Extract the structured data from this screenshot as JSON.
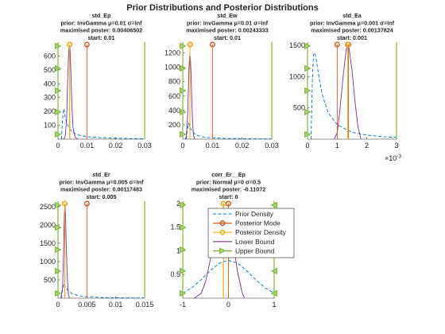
{
  "figure": {
    "suptitle": "Prior Distributions and Posterior Distributions"
  },
  "legend": {
    "entries": [
      "Prior Density",
      "Posterior Mode",
      "Posterior Density",
      "Lower Bound",
      "Upper Bound"
    ],
    "placement": "inside bottom-right of subplot 5 (corr_Er__Ep), overflowing left"
  },
  "colors": {
    "prior": "#0072BD",
    "mode": "#D95319",
    "posterior_density": "#EDB120",
    "lower_bound": "#7E2F8E",
    "upper_bound": "#77AC30",
    "axis": "#262626",
    "background": "#ffffff"
  },
  "chart_data": [
    {
      "type": "line",
      "title": [
        "std_Ep",
        "prior: InvGamma μ=0.01 σ=Inf",
        "maximised poster: 0.00406502",
        "start: 0.01"
      ],
      "xlim": [
        0,
        0.03
      ],
      "ylim": [
        0,
        700
      ],
      "xticks": [
        0,
        0.01,
        0.02,
        0.03
      ],
      "xtick_labels": [
        "0",
        "0.01",
        "0.02",
        "0.03"
      ],
      "yticks": [
        100,
        200,
        300,
        400,
        500,
        600
      ],
      "ytick_labels": [
        "100",
        "200",
        "300",
        "400",
        "500",
        "600"
      ],
      "x_exponent": "",
      "series": [
        {
          "role": "prior",
          "style": "dashed",
          "x": [
            0.0012,
            0.0016,
            0.002,
            0.0025,
            0.003,
            0.004,
            0.005,
            0.007,
            0.01,
            0.015,
            0.02,
            0.025,
            0.03
          ],
          "y": [
            0,
            150,
            220,
            160,
            120,
            75,
            50,
            30,
            18,
            10,
            7,
            4,
            3
          ]
        },
        {
          "role": "posterior_density",
          "style": "solid",
          "x": [
            0.0015,
            0.002,
            0.0025,
            0.003,
            0.0033,
            0.0036,
            0.0038,
            0.004,
            0.0042,
            0.0045,
            0.0048,
            0.0052,
            0.006,
            0.007
          ],
          "y": [
            0,
            0,
            20,
            150,
            400,
            580,
            650,
            670,
            640,
            460,
            250,
            80,
            10,
            0
          ]
        }
      ],
      "lower_bound": 0,
      "upper_bound": 0.03,
      "posterior_mode": 0.00406502,
      "start": 0.01
    },
    {
      "type": "line",
      "title": [
        "std_Ew",
        "prior: InvGamma μ=0.01 σ=Inf",
        "maximised poster: 0.00243333",
        "start: 0.01"
      ],
      "xlim": [
        0,
        0.03
      ],
      "ylim": [
        0,
        1350
      ],
      "xticks": [
        0,
        0.01,
        0.02,
        0.03
      ],
      "xtick_labels": [
        "0",
        "0.01",
        "0.02",
        "0.03"
      ],
      "yticks": [
        200,
        400,
        600,
        800,
        1000,
        1200
      ],
      "ytick_labels": [
        "200",
        "400",
        "600",
        "800",
        "1000",
        "1200"
      ],
      "x_exponent": "",
      "series": [
        {
          "role": "prior",
          "style": "dashed",
          "x": [
            0.0012,
            0.0016,
            0.002,
            0.0025,
            0.003,
            0.004,
            0.005,
            0.007,
            0.01,
            0.015,
            0.02,
            0.025,
            0.03
          ],
          "y": [
            0,
            150,
            220,
            160,
            120,
            75,
            50,
            30,
            18,
            10,
            7,
            4,
            3
          ]
        },
        {
          "role": "posterior_density",
          "style": "solid",
          "x": [
            0.0008,
            0.0012,
            0.0016,
            0.0019,
            0.0021,
            0.0023,
            0.0024,
            0.0026,
            0.0028,
            0.003,
            0.0033,
            0.0036,
            0.004
          ],
          "y": [
            0,
            40,
            300,
            700,
            1000,
            1150,
            1180,
            1100,
            900,
            600,
            250,
            60,
            0
          ]
        }
      ],
      "lower_bound": 0,
      "upper_bound": 0.03,
      "posterior_mode": 0.00243333,
      "start": 0.01
    },
    {
      "type": "line",
      "title": [
        "std_Ea",
        "prior: InvGamma μ=0.001 σ=Inf",
        "maximised poster: 0.00137824",
        "start: 0.001"
      ],
      "xlim": [
        0,
        0.003
      ],
      "ylim": [
        0,
        1550
      ],
      "xticks": [
        0,
        0.001,
        0.002,
        0.003
      ],
      "xtick_labels": [
        "0",
        "1",
        "2",
        "3"
      ],
      "yticks": [
        500,
        1000,
        1500
      ],
      "ytick_labels": [
        "500",
        "1000",
        "1500"
      ],
      "x_exponent": "×10",
      "x_exponent_power": "-3",
      "series": [
        {
          "role": "prior",
          "style": "dashed",
          "x": [
            0.00012,
            0.00016,
            0.0002,
            0.00025,
            0.0003,
            0.0004,
            0.0005,
            0.0007,
            0.001,
            0.0015,
            0.002,
            0.0025,
            0.003
          ],
          "y": [
            0,
            900,
            1350,
            1380,
            1250,
            950,
            700,
            420,
            230,
            110,
            65,
            40,
            28
          ]
        },
        {
          "role": "posterior_density",
          "style": "solid",
          "x": [
            0.0009,
            0.001,
            0.0011,
            0.0012,
            0.0013,
            0.00135,
            0.0014,
            0.0015,
            0.0016,
            0.0017,
            0.0018
          ],
          "y": [
            0,
            100,
            500,
            1000,
            1420,
            1500,
            1450,
            1100,
            600,
            200,
            0
          ]
        }
      ],
      "lower_bound": 0,
      "upper_bound": 0.003,
      "posterior_mode": 0.00137824,
      "start": 0.001
    },
    {
      "type": "line",
      "title": [
        "std_Er",
        "prior: InvGamma μ=0.005 σ=Inf",
        "maximised poster: 0.00117483",
        "start: 0.005"
      ],
      "xlim": [
        0,
        0.015
      ],
      "ylim": [
        0,
        2650
      ],
      "xticks": [
        0,
        0.005,
        0.01,
        0.015
      ],
      "xtick_labels": [
        "0",
        "0.005",
        "0.01",
        "0.015"
      ],
      "yticks": [
        500,
        1000,
        1500,
        2000,
        2500
      ],
      "ytick_labels": [
        "500",
        "1000",
        "1500",
        "2000",
        "2500"
      ],
      "x_exponent": "",
      "series": [
        {
          "role": "prior",
          "style": "dashed",
          "x": [
            0.0006,
            0.0008,
            0.001,
            0.00125,
            0.0015,
            0.002,
            0.0025,
            0.0035,
            0.005,
            0.0075,
            0.01,
            0.0125,
            0.015
          ],
          "y": [
            0,
            250,
            400,
            320,
            250,
            170,
            120,
            70,
            40,
            20,
            12,
            8,
            6
          ]
        },
        {
          "role": "posterior_density",
          "style": "solid",
          "x": [
            0.0005,
            0.0008,
            0.001,
            0.0011,
            0.0012,
            0.0013,
            0.0014,
            0.0016,
            0.0018,
            0.002
          ],
          "y": [
            0,
            300,
            1500,
            2300,
            2550,
            2300,
            1600,
            600,
            100,
            0
          ]
        }
      ],
      "lower_bound": 0,
      "upper_bound": 0.015,
      "posterior_mode": 0.00117483,
      "start": 0.005
    },
    {
      "type": "line",
      "title": [
        "corr_Er__Ep",
        "prior: Normal μ=0 σ=0.5",
        "maximised poster: -0.11072",
        "start: 0"
      ],
      "xlim": [
        -1,
        1
      ],
      "ylim": [
        0,
        2.05
      ],
      "xticks": [
        -1,
        0,
        1
      ],
      "xtick_labels": [
        "-1",
        "0",
        "1"
      ],
      "yticks": [
        0.5,
        1,
        1.5,
        2
      ],
      "ytick_labels": [
        "0.5",
        "1",
        "1.5",
        "2"
      ],
      "x_exponent": "",
      "series": [
        {
          "role": "prior",
          "style": "dashed",
          "x": [
            -1,
            -0.8,
            -0.6,
            -0.4,
            -0.2,
            0,
            0.2,
            0.4,
            0.6,
            0.8,
            1
          ],
          "y": [
            0.11,
            0.22,
            0.39,
            0.58,
            0.74,
            0.8,
            0.74,
            0.58,
            0.39,
            0.22,
            0.11
          ]
        },
        {
          "role": "posterior_density",
          "style": "solid",
          "x": [
            -0.75,
            -0.6,
            -0.5,
            -0.4,
            -0.3,
            -0.2,
            -0.11,
            0,
            0.1,
            0.2,
            0.3,
            0.35
          ],
          "y": [
            0,
            0.1,
            0.35,
            0.8,
            1.35,
            1.75,
            1.9,
            1.72,
            1.2,
            0.55,
            0.12,
            0
          ]
        }
      ],
      "lower_bound": -1,
      "upper_bound": 1,
      "posterior_mode": -0.11072,
      "start": 0
    }
  ]
}
